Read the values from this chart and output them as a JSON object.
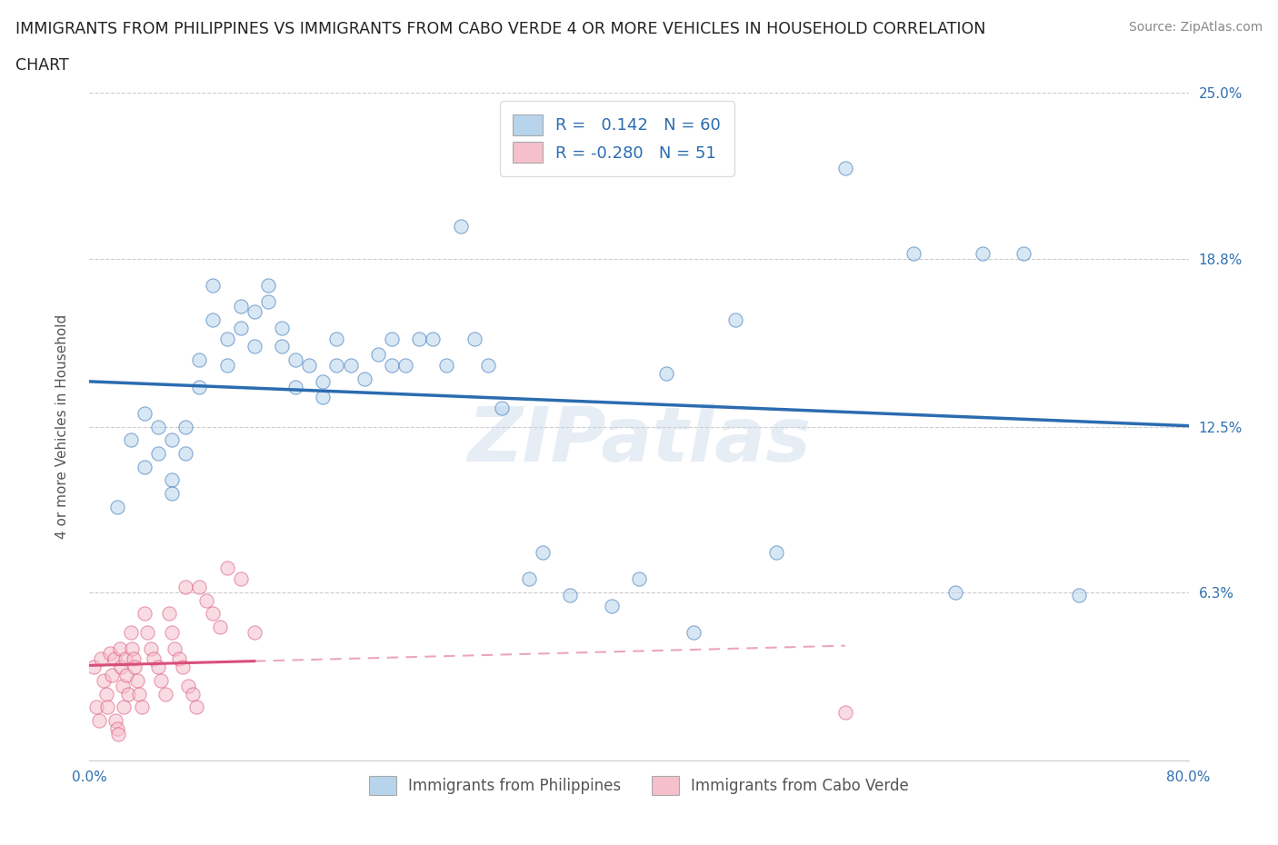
{
  "title_line1": "IMMIGRANTS FROM PHILIPPINES VS IMMIGRANTS FROM CABO VERDE 4 OR MORE VEHICLES IN HOUSEHOLD CORRELATION",
  "title_line2": "CHART",
  "source": "Source: ZipAtlas.com",
  "ylabel": "4 or more Vehicles in Household",
  "xlim": [
    0.0,
    0.8
  ],
  "ylim": [
    0.0,
    0.25
  ],
  "xticks": [
    0.0,
    0.2,
    0.4,
    0.6,
    0.8
  ],
  "yticks": [
    0.0,
    0.063,
    0.125,
    0.188,
    0.25
  ],
  "xtick_labels": [
    "0.0%",
    "",
    "",
    "",
    "80.0%"
  ],
  "ytick_labels": [
    "",
    "6.3%",
    "12.5%",
    "18.8%",
    "25.0%"
  ],
  "philippines_R": 0.142,
  "philippines_N": 60,
  "caboverde_R": -0.28,
  "caboverde_N": 51,
  "philippines_color": "#b8d4ec",
  "caboverde_color": "#f5bfcc",
  "philippines_line_color": "#2b6cb0",
  "caboverde_line_color": "#d94f7a",
  "watermark": "ZIPatlas",
  "philippines_x": [
    0.02,
    0.03,
    0.04,
    0.04,
    0.05,
    0.05,
    0.06,
    0.06,
    0.06,
    0.07,
    0.07,
    0.08,
    0.08,
    0.09,
    0.09,
    0.1,
    0.1,
    0.11,
    0.11,
    0.12,
    0.12,
    0.13,
    0.13,
    0.14,
    0.14,
    0.15,
    0.15,
    0.16,
    0.17,
    0.17,
    0.18,
    0.18,
    0.19,
    0.2,
    0.21,
    0.22,
    0.22,
    0.23,
    0.24,
    0.25,
    0.26,
    0.27,
    0.28,
    0.29,
    0.3,
    0.32,
    0.33,
    0.35,
    0.38,
    0.4,
    0.42,
    0.44,
    0.47,
    0.5,
    0.55,
    0.6,
    0.63,
    0.65,
    0.68,
    0.72
  ],
  "philippines_y": [
    0.095,
    0.12,
    0.13,
    0.11,
    0.125,
    0.115,
    0.105,
    0.12,
    0.1,
    0.125,
    0.115,
    0.14,
    0.15,
    0.165,
    0.178,
    0.158,
    0.148,
    0.17,
    0.162,
    0.168,
    0.155,
    0.172,
    0.178,
    0.162,
    0.155,
    0.15,
    0.14,
    0.148,
    0.142,
    0.136,
    0.148,
    0.158,
    0.148,
    0.143,
    0.152,
    0.158,
    0.148,
    0.148,
    0.158,
    0.158,
    0.148,
    0.2,
    0.158,
    0.148,
    0.132,
    0.068,
    0.078,
    0.062,
    0.058,
    0.068,
    0.145,
    0.048,
    0.165,
    0.078,
    0.222,
    0.19,
    0.063,
    0.19,
    0.19,
    0.062
  ],
  "caboverde_x": [
    0.003,
    0.005,
    0.007,
    0.008,
    0.01,
    0.012,
    0.013,
    0.015,
    0.016,
    0.018,
    0.019,
    0.02,
    0.021,
    0.022,
    0.023,
    0.024,
    0.025,
    0.026,
    0.027,
    0.028,
    0.03,
    0.031,
    0.032,
    0.033,
    0.035,
    0.036,
    0.038,
    0.04,
    0.042,
    0.045,
    0.047,
    0.05,
    0.052,
    0.055,
    0.058,
    0.06,
    0.062,
    0.065,
    0.068,
    0.07,
    0.072,
    0.075,
    0.078,
    0.08,
    0.085,
    0.09,
    0.095,
    0.1,
    0.11,
    0.12,
    0.55
  ],
  "caboverde_y": [
    0.035,
    0.02,
    0.015,
    0.038,
    0.03,
    0.025,
    0.02,
    0.04,
    0.032,
    0.038,
    0.015,
    0.012,
    0.01,
    0.042,
    0.035,
    0.028,
    0.02,
    0.038,
    0.032,
    0.025,
    0.048,
    0.042,
    0.038,
    0.035,
    0.03,
    0.025,
    0.02,
    0.055,
    0.048,
    0.042,
    0.038,
    0.035,
    0.03,
    0.025,
    0.055,
    0.048,
    0.042,
    0.038,
    0.035,
    0.065,
    0.028,
    0.025,
    0.02,
    0.065,
    0.06,
    0.055,
    0.05,
    0.072,
    0.068,
    0.048,
    0.018
  ],
  "background_color": "#ffffff",
  "grid_color": "#cccccc",
  "scatter_alpha": 0.55,
  "scatter_size": 120
}
